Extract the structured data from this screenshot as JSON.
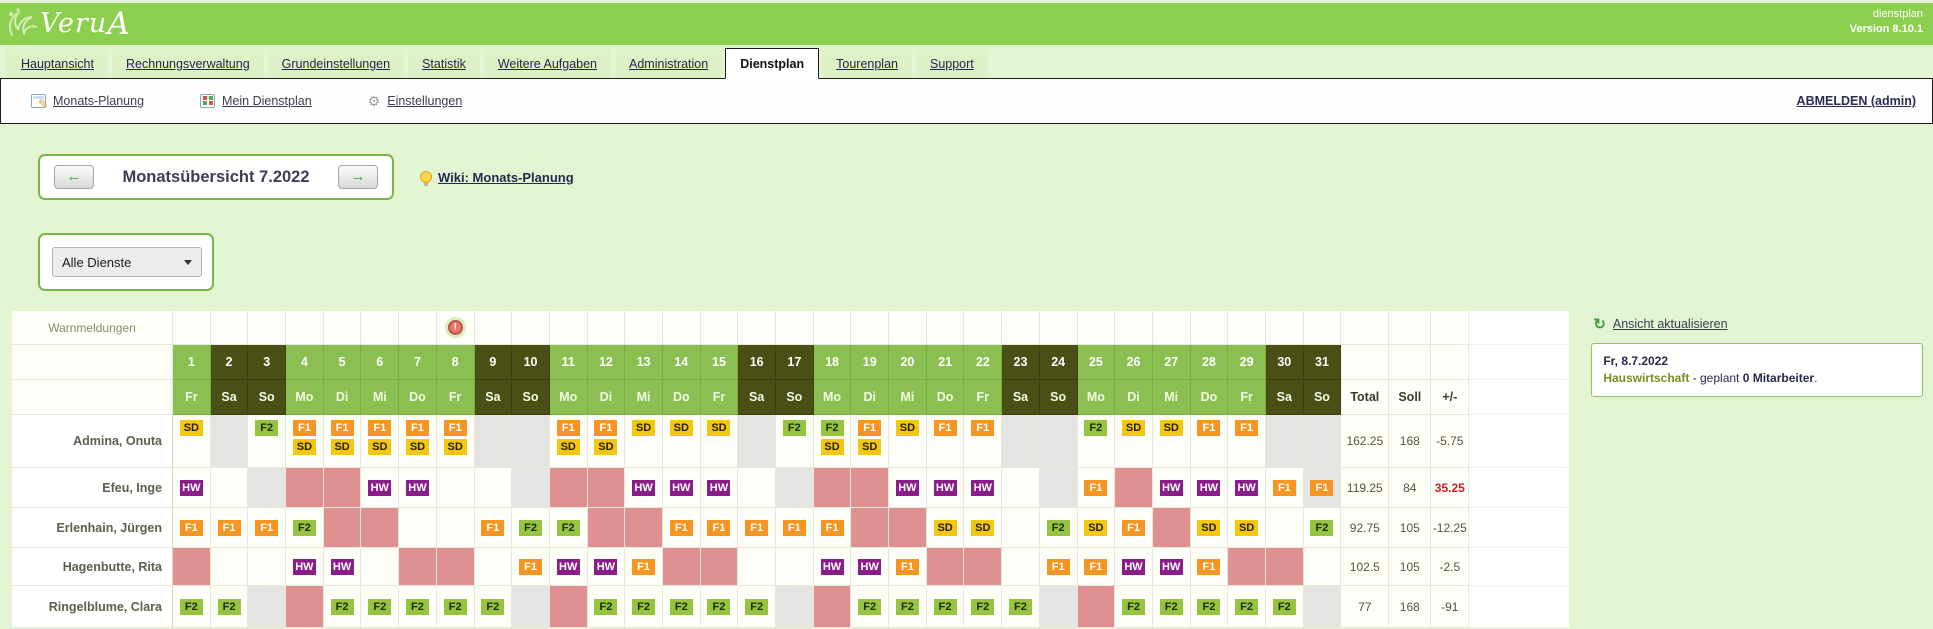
{
  "header": {
    "logo_text": "Veru",
    "logo_accent": "A",
    "subtitle": "dienstplan",
    "version": "Version 8.10.1"
  },
  "tabs": [
    {
      "label": "Hauptansicht",
      "active": false
    },
    {
      "label": "Rechnungsverwaltung",
      "active": false
    },
    {
      "label": "Grundeinstellungen",
      "active": false
    },
    {
      "label": "Statistik",
      "active": false
    },
    {
      "label": "Weitere Aufgaben",
      "active": false
    },
    {
      "label": "Administration",
      "active": false
    },
    {
      "label": "Dienstplan",
      "active": true
    },
    {
      "label": "Tourenplan",
      "active": false
    },
    {
      "label": "Support",
      "active": false
    }
  ],
  "toolbar": {
    "items": [
      {
        "label": "Monats-Planung",
        "icon": "calendar-edit-icon"
      },
      {
        "label": "Mein Dienstplan",
        "icon": "calendar-icon"
      },
      {
        "label": "Einstellungen",
        "icon": "gear-icon"
      }
    ],
    "logout_label": "ABMELDEN (admin)"
  },
  "month_nav": {
    "title": "Monatsübersicht 7.2022",
    "prev_icon": "←",
    "next_icon": "→",
    "wiki_label": "Wiki: Monats-Planung"
  },
  "filter": {
    "selected_option": "Alle Dienste"
  },
  "roster": {
    "warn_label": "Warnmeldungen",
    "warning_day": 8,
    "warning_glyph": "!",
    "totals_headers": [
      "Total",
      "Soll",
      "+/-"
    ],
    "day_numbers": [
      1,
      2,
      3,
      4,
      5,
      6,
      7,
      8,
      9,
      10,
      11,
      12,
      13,
      14,
      15,
      16,
      17,
      18,
      19,
      20,
      21,
      22,
      23,
      24,
      25,
      26,
      27,
      28,
      29,
      30,
      31
    ],
    "day_names": [
      "Fr",
      "Sa",
      "So",
      "Mo",
      "Di",
      "Mi",
      "Do",
      "Fr",
      "Sa",
      "So",
      "Mo",
      "Di",
      "Mi",
      "Do",
      "Fr",
      "Sa",
      "So",
      "Mo",
      "Di",
      "Mi",
      "Do",
      "Fr",
      "Sa",
      "So",
      "Mo",
      "Di",
      "Mi",
      "Do",
      "Fr",
      "Sa",
      "So"
    ],
    "weekend_days": [
      2,
      3,
      9,
      10,
      16,
      17,
      23,
      24,
      30,
      31
    ],
    "shift_colors": {
      "SD": {
        "bg": "#f3c70f",
        "fg": "#262000"
      },
      "F1": {
        "bg": "#f79522",
        "fg": "#ffffff"
      },
      "F2": {
        "bg": "#96c440",
        "fg": "#1c2a08"
      },
      "HW": {
        "bg": "#8b1d8b",
        "fg": "#ffffff"
      }
    },
    "cell_colors": {
      "normal": "#fdfef8",
      "gray": "#e4e4e2",
      "pink": "#df9090"
    },
    "employees": [
      {
        "name": "Admina, Onuta",
        "tall": true,
        "total": "162.25",
        "soll": "168",
        "diff": "-5.75",
        "diff_alert": false,
        "cells": [
          "SD",
          "@g",
          "F2",
          "F1+SD",
          "F1+SD",
          "F1+SD",
          "F1+SD",
          "F1+SD",
          "@g",
          "@g",
          "F1+SD",
          "F1+SD",
          "SD",
          "SD",
          "SD",
          "@g",
          "F2",
          "F2+SD",
          "F1+SD",
          "SD",
          "F1",
          "F1",
          "@g",
          "@g",
          "F2",
          "SD",
          "SD",
          "F1",
          "F1",
          "@g",
          "@g"
        ]
      },
      {
        "name": "Efeu, Inge",
        "tall": false,
        "total": "119.25",
        "soll": "84",
        "diff": "35.25",
        "diff_alert": true,
        "cells": [
          "HW",
          "",
          "@g",
          "@p",
          "@p",
          "HW",
          "HW",
          "",
          "",
          "@g",
          "@p",
          "@p",
          "HW",
          "HW",
          "HW",
          "",
          "@g",
          "@p",
          "@p",
          "HW",
          "HW",
          "HW",
          "",
          "@g",
          "F1",
          "@p",
          "HW",
          "HW",
          "HW",
          "F1",
          "F1@g"
        ]
      },
      {
        "name": "Erlenhain, Jürgen",
        "tall": false,
        "total": "92.75",
        "soll": "105",
        "diff": "-12.25",
        "diff_alert": false,
        "cells": [
          "F1",
          "F1",
          "F1",
          "F2",
          "@p",
          "@p",
          "",
          "",
          "F1",
          "F2",
          "F2",
          "@p",
          "@p",
          "F1",
          "F1",
          "F1",
          "F1",
          "F1",
          "@p",
          "@p",
          "SD",
          "SD",
          "",
          "F2",
          "SD",
          "F1",
          "@p",
          "SD",
          "SD",
          "",
          "F2"
        ]
      },
      {
        "name": "Hagenbutte, Rita",
        "tall": false,
        "total": "102.5",
        "soll": "105",
        "diff": "-2.5",
        "diff_alert": false,
        "cells": [
          "@p",
          "",
          "",
          "HW",
          "HW",
          "",
          "@p",
          "@p",
          "",
          "F1",
          "HW",
          "HW",
          "F1",
          "@p",
          "@p",
          "",
          "",
          "HW",
          "HW",
          "F1",
          "@p",
          "@p",
          "",
          "F1",
          "F1",
          "HW",
          "HW",
          "F1",
          "@p",
          "@p",
          ""
        ]
      },
      {
        "name": "Ringelblume, Clara",
        "tall": false,
        "total": "77",
        "soll": "168",
        "diff": "-91",
        "diff_alert": false,
        "cells": [
          "F2",
          "F2",
          "@g",
          "@p",
          "F2",
          "F2",
          "F2",
          "F2",
          "F2",
          "@g",
          "@p",
          "F2",
          "F2",
          "F2",
          "F2",
          "F2",
          "@g",
          "@p",
          "F2",
          "F2",
          "F2",
          "F2",
          "F2",
          "@g",
          "@p",
          "F2",
          "F2",
          "F2",
          "F2",
          "F2",
          "@g"
        ]
      }
    ]
  },
  "side_panel": {
    "refresh_label": "Ansicht aktualisieren",
    "refresh_glyph": "↻",
    "info_date": "Fr, 8.7.2022",
    "info_department": "Hauswirtschaft",
    "info_middle": " - geplant ",
    "info_count": "0 Mitarbeiter",
    "info_end": "."
  }
}
